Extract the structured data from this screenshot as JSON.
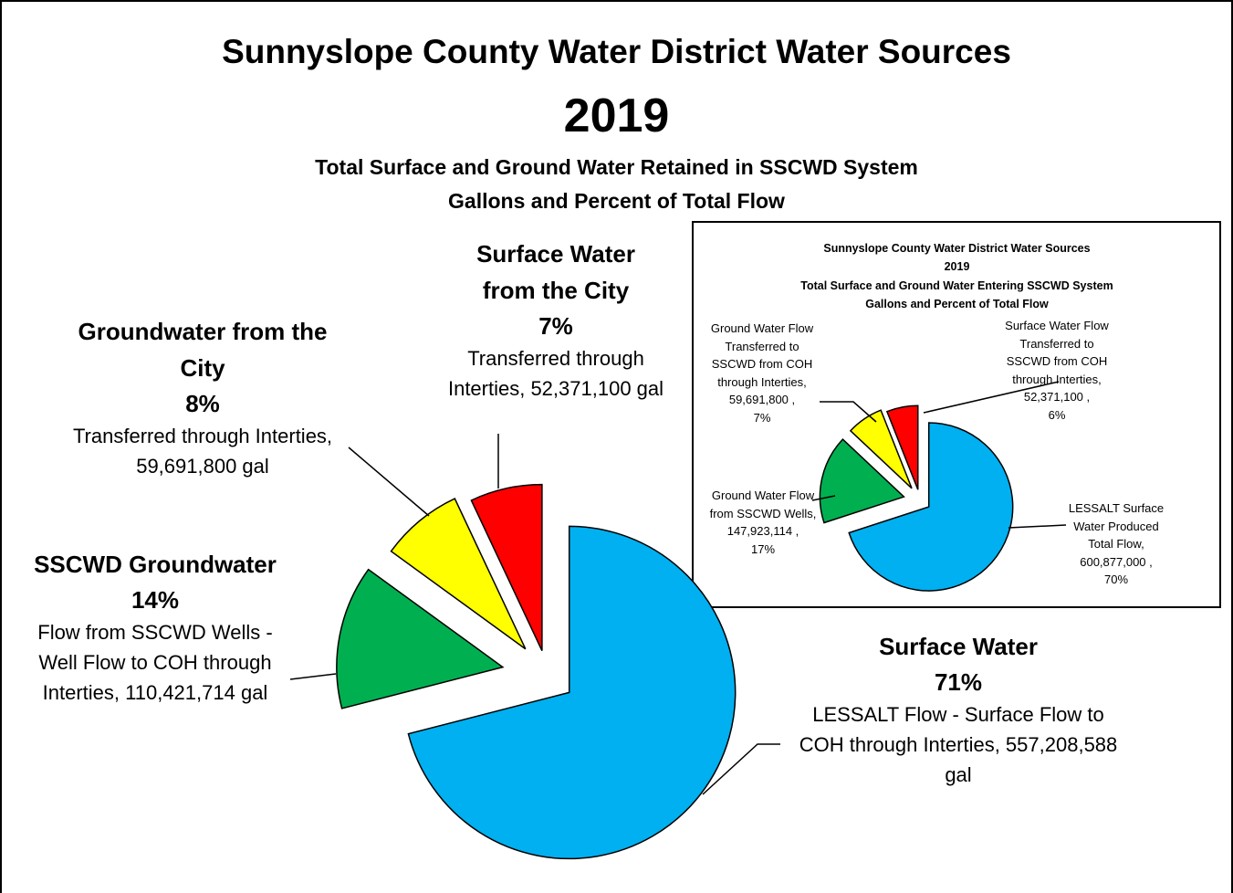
{
  "chart_data": [
    {
      "type": "pie",
      "title": "Sunnyslope County Water District Water Sources",
      "year": "2019",
      "subtitle": [
        "Total Surface and Ground Water  Retained in SSCWD System",
        "Gallons and Percent of Total Flow"
      ],
      "categories": [
        "Surface Water",
        "SSCWD Groundwater",
        "Groundwater from the City",
        "Surface Water from the City"
      ],
      "values": [
        71,
        14,
        8,
        7
      ],
      "value_labels": [
        "71%",
        "14%",
        "8%",
        "7%"
      ],
      "descriptions": [
        "LESSALT Flow - Surface Flow to COH through Interties, 557,208,588 gal",
        "Flow from SSCWD Wells - Well Flow to COH through Interties,  110,421,714 gal",
        "Transferred through Interties, 59,691,800 gal",
        "Transferred through Interties, 52,371,100 gal"
      ],
      "colors": [
        "#00b0f0",
        "#00b050",
        "#ffff00",
        "#ff0000"
      ]
    },
    {
      "type": "pie",
      "title": "Sunnyslope County Water District Water Sources",
      "year": "2019",
      "subtitle": [
        "Total Surface and Ground Water Entering  SSCWD System",
        "Gallons and Percent of Total Flow"
      ],
      "categories": [
        "LESSALT Surface Water Produced Total Flow,",
        "Ground Water Flow from SSCWD Wells,",
        "Ground Water Flow Transferred to SSCWD from COH through Interties,",
        "Surface Water Flow Transferred to SSCWD from COH through Interties,"
      ],
      "values": [
        70,
        17,
        7,
        6
      ],
      "value_labels": [
        "70%",
        "17%",
        "7%",
        "6%"
      ],
      "descriptions": [
        "600,877,000 ,",
        "147,923,114 ,",
        "59,691,800 ,",
        "52,371,100 ,"
      ],
      "colors": [
        "#00b0f0",
        "#00b050",
        "#ffff00",
        "#ff0000"
      ]
    }
  ]
}
